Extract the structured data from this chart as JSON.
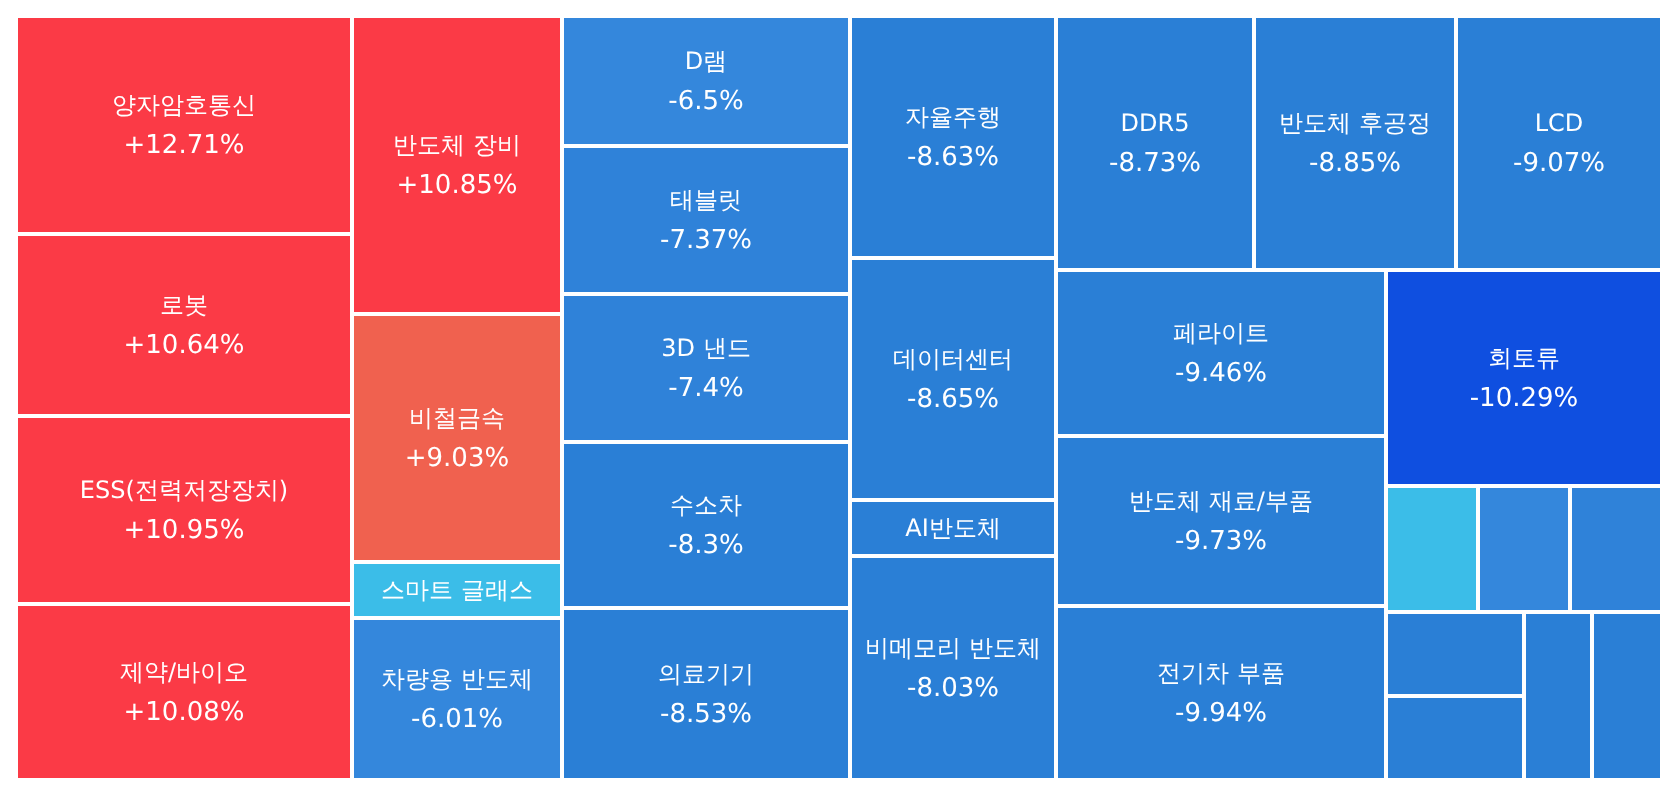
{
  "chart_data": {
    "type": "other",
    "categories": [
      "양자암호통신",
      "로봇",
      "ESS(전력저장장치)",
      "제약/바이오",
      "반도체 장비",
      "비철금속",
      "스마트 글래스",
      "차량용 반도체",
      "D램",
      "태블릿",
      "3D 낸드",
      "수소차",
      "의료기기",
      "자율주행",
      "데이터센터",
      "AI반도체",
      "비메모리 반도체",
      "DDR5",
      "반도체 후공정",
      "LCD",
      "페라이트",
      "반도체 재료/부품",
      "전기차 부품",
      "회토류",
      null,
      null,
      null,
      null,
      null,
      null,
      null
    ],
    "values": [
      12.71,
      10.64,
      10.95,
      10.08,
      10.85,
      9.03,
      null,
      -6.01,
      -6.5,
      -7.37,
      -7.4,
      -8.3,
      -8.53,
      -8.63,
      -8.65,
      null,
      -8.03,
      -8.73,
      -8.85,
      -9.07,
      -9.46,
      -9.73,
      -9.94,
      -10.29,
      null,
      null,
      null,
      null,
      null,
      null,
      null
    ],
    "value_labels": [
      "+12.71%",
      "+10.64%",
      "+10.95%",
      "+10.08%",
      "+10.85%",
      "+9.03%",
      null,
      "-6.01%",
      "-6.5%",
      "-7.37%",
      "-7.4%",
      "-8.3%",
      "-8.53%",
      "-8.63%",
      "-8.65%",
      null,
      "-8.03%",
      "-8.73%",
      "-8.85%",
      "-9.07%",
      "-9.46%",
      "-9.73%",
      "-9.94%",
      "-10.29%",
      null,
      null,
      null,
      null,
      null,
      null,
      null
    ],
    "colors": [
      "#fb3a46",
      "#fb3a46",
      "#fb3a46",
      "#fb3a46",
      "#fb3a46",
      "#f0614f",
      "#3bbde8",
      "#3487dc",
      "#3487dc",
      "#2f82d9",
      "#2f82d9",
      "#2a7fd6",
      "#2a7fd6",
      "#2a7fd6",
      "#2a7fd6",
      "#2a7fd6",
      "#2a7fd6",
      "#2a7fd6",
      "#2a7fd6",
      "#2a7fd6",
      "#2a7fd6",
      "#2a7fd6",
      "#2a7fd6",
      "#0f4fe0",
      "#3bbde8",
      "#3487dc",
      "#2f82d9",
      "#2a7fd6",
      "#2a7fd6",
      "#2a7fd6",
      "#2a7fd6"
    ]
  }
}
